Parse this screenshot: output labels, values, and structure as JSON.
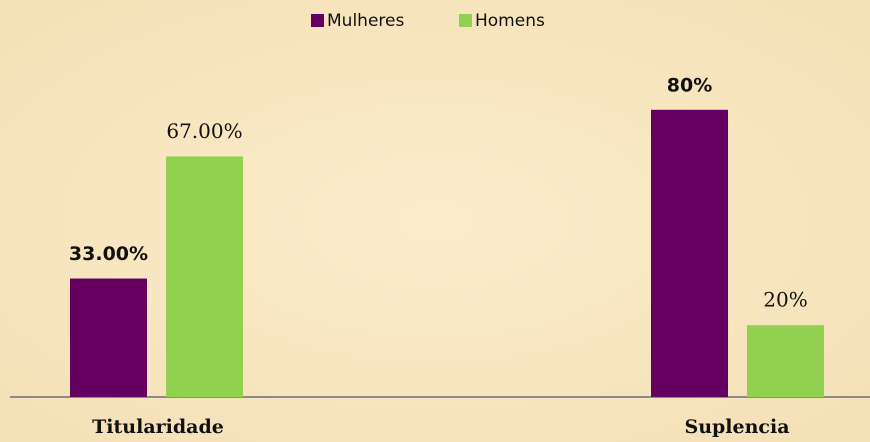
{
  "chart_data": {
    "type": "bar",
    "categories": [
      "Titularidade",
      "Suplencia"
    ],
    "series": [
      {
        "name": "Mulheres",
        "color": "#650061",
        "values": [
          33,
          80
        ],
        "value_labels": [
          "33.00%",
          "80%"
        ]
      },
      {
        "name": "Homens",
        "color": "#92d050",
        "values": [
          67,
          20
        ],
        "value_labels": [
          "67.00%",
          "20%"
        ]
      }
    ],
    "legend": "top"
  }
}
